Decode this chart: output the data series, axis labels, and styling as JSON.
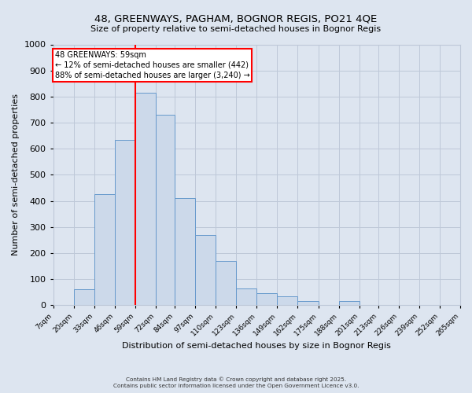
{
  "title": "48, GREENWAYS, PAGHAM, BOGNOR REGIS, PO21 4QE",
  "subtitle": "Size of property relative to semi-detached houses in Bognor Regis",
  "xlabel": "Distribution of semi-detached houses by size in Bognor Regis",
  "ylabel": "Number of semi-detached properties",
  "bin_edges": [
    7,
    20,
    33,
    46,
    59,
    72,
    84,
    97,
    110,
    123,
    136,
    149,
    162,
    175,
    188,
    201,
    213,
    226,
    239,
    252,
    265
  ],
  "bin_labels": [
    "7sqm",
    "20sqm",
    "33sqm",
    "46sqm",
    "59sqm",
    "72sqm",
    "84sqm",
    "97sqm",
    "110sqm",
    "123sqm",
    "136sqm",
    "149sqm",
    "162sqm",
    "175sqm",
    "188sqm",
    "201sqm",
    "213sqm",
    "226sqm",
    "239sqm",
    "252sqm",
    "265sqm"
  ],
  "counts": [
    0,
    60,
    425,
    635,
    815,
    730,
    410,
    270,
    170,
    65,
    45,
    35,
    15,
    0,
    15,
    0,
    0,
    0,
    0,
    0
  ],
  "bar_facecolor": "#ccd9ea",
  "bar_edgecolor": "#6699cc",
  "grid_color": "#bec8d8",
  "background_color": "#dde5f0",
  "vline_x": 59,
  "vline_color": "red",
  "annotation_title": "48 GREENWAYS: 59sqm",
  "annotation_line1": "← 12% of semi-detached houses are smaller (442)",
  "annotation_line2": "88% of semi-detached houses are larger (3,240) →",
  "annotation_box_color": "white",
  "annotation_box_edgecolor": "red",
  "ylim": [
    0,
    1000
  ],
  "yticks": [
    0,
    100,
    200,
    300,
    400,
    500,
    600,
    700,
    800,
    900,
    1000
  ],
  "footer1": "Contains HM Land Registry data © Crown copyright and database right 2025.",
  "footer2": "Contains public sector information licensed under the Open Government Licence v3.0."
}
